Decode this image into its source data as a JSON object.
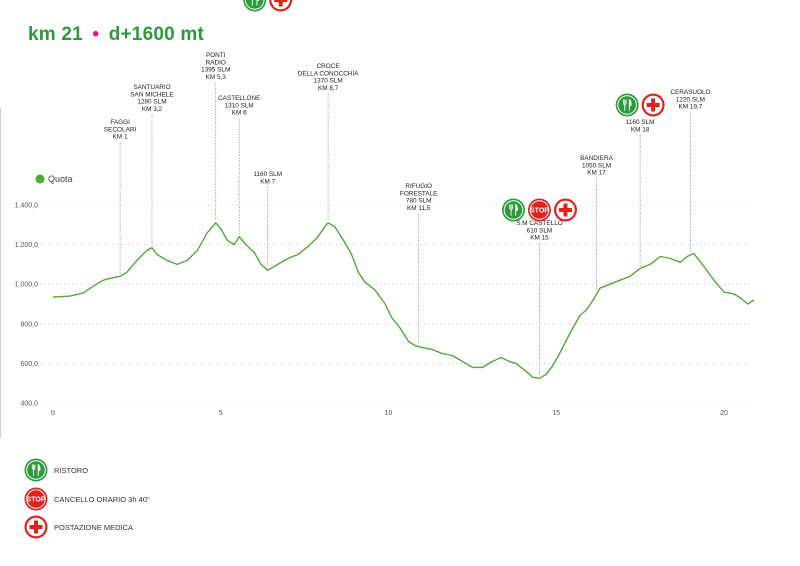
{
  "header": {
    "distance": "km 21",
    "separator": "•",
    "elevation": "d+1600 mt"
  },
  "colors": {
    "accent_green": "#2e9a3c",
    "line": "#52a83a",
    "separator": "#e5127d",
    "icon_red": "#e2211b"
  },
  "chart_data": {
    "type": "line",
    "title": "",
    "xlabel": "",
    "ylabel": "",
    "legend": [
      {
        "label": "Quota",
        "color": "#52a83a"
      }
    ],
    "xlim": [
      0,
      21
    ],
    "ylim": [
      400,
      1450
    ],
    "xticks": [
      "0",
      "5",
      "10",
      "15",
      "20"
    ],
    "yticks": [
      "400,0",
      "600,0",
      "800,0",
      "1.000,0",
      "1.200,0",
      "1.400,0"
    ],
    "grid": true,
    "series": [
      {
        "name": "Quota",
        "points": [
          [
            0,
            935
          ],
          [
            0.5,
            940
          ],
          [
            0.9,
            955
          ],
          [
            1.2,
            990
          ],
          [
            1.5,
            1020
          ],
          [
            1.7,
            1030
          ],
          [
            2.0,
            1040
          ],
          [
            2.2,
            1060
          ],
          [
            2.5,
            1120
          ],
          [
            2.8,
            1170
          ],
          [
            2.95,
            1185
          ],
          [
            3.1,
            1150
          ],
          [
            3.4,
            1120
          ],
          [
            3.7,
            1100
          ],
          [
            4.0,
            1120
          ],
          [
            4.3,
            1170
          ],
          [
            4.6,
            1260
          ],
          [
            4.85,
            1310
          ],
          [
            5.0,
            1280
          ],
          [
            5.2,
            1220
          ],
          [
            5.4,
            1200
          ],
          [
            5.55,
            1240
          ],
          [
            5.75,
            1200
          ],
          [
            6.0,
            1160
          ],
          [
            6.2,
            1100
          ],
          [
            6.4,
            1070
          ],
          [
            6.7,
            1100
          ],
          [
            7.0,
            1130
          ],
          [
            7.3,
            1150
          ],
          [
            7.6,
            1190
          ],
          [
            7.9,
            1240
          ],
          [
            8.1,
            1290
          ],
          [
            8.2,
            1310
          ],
          [
            8.4,
            1290
          ],
          [
            8.7,
            1210
          ],
          [
            8.9,
            1150
          ],
          [
            9.1,
            1060
          ],
          [
            9.3,
            1010
          ],
          [
            9.6,
            970
          ],
          [
            9.9,
            900
          ],
          [
            10.1,
            830
          ],
          [
            10.3,
            790
          ],
          [
            10.6,
            710
          ],
          [
            10.8,
            690
          ],
          [
            11.0,
            680
          ],
          [
            11.3,
            670
          ],
          [
            11.6,
            650
          ],
          [
            11.9,
            640
          ],
          [
            12.2,
            610
          ],
          [
            12.5,
            580
          ],
          [
            12.8,
            580
          ],
          [
            13.1,
            610
          ],
          [
            13.35,
            630
          ],
          [
            13.6,
            610
          ],
          [
            13.8,
            600
          ],
          [
            14.1,
            560
          ],
          [
            14.3,
            530
          ],
          [
            14.5,
            525
          ],
          [
            14.7,
            545
          ],
          [
            14.9,
            590
          ],
          [
            15.1,
            650
          ],
          [
            15.4,
            750
          ],
          [
            15.7,
            840
          ],
          [
            15.9,
            870
          ],
          [
            16.1,
            920
          ],
          [
            16.3,
            980
          ],
          [
            16.6,
            1000
          ],
          [
            16.9,
            1020
          ],
          [
            17.2,
            1040
          ],
          [
            17.5,
            1080
          ],
          [
            17.8,
            1100
          ],
          [
            18.1,
            1140
          ],
          [
            18.4,
            1130
          ],
          [
            18.7,
            1110
          ],
          [
            18.9,
            1140
          ],
          [
            19.1,
            1155
          ],
          [
            19.4,
            1090
          ],
          [
            19.7,
            1020
          ],
          [
            20.0,
            960
          ],
          [
            20.3,
            950
          ],
          [
            20.5,
            930
          ],
          [
            20.7,
            900
          ],
          [
            20.9,
            920
          ]
        ]
      }
    ],
    "annotations": [
      {
        "lines": [
          "FAGGI",
          "SECOLARI",
          "KM 1"
        ],
        "km": 2.0,
        "elev": 1040
      },
      {
        "lines": [
          "SANTUARIO",
          "SAN MICHELE",
          "1280 SLM",
          "KM 3,2"
        ],
        "km": 2.95,
        "elev": 1185
      },
      {
        "lines": [
          "PONTI",
          "RADIO",
          "1395 SLM",
          "KM 5,3"
        ],
        "km": 4.85,
        "elev": 1310
      },
      {
        "lines": [
          "CASTELLONE",
          "1310 SLM",
          "KM 6"
        ],
        "km": 5.55,
        "elev": 1240
      },
      {
        "lines": [
          "1160 SLM",
          "KM 7"
        ],
        "km": 6.4,
        "elev": 1070,
        "icons": [
          "ristoro",
          "medico"
        ]
      },
      {
        "lines": [
          "CROCE",
          "DELLA CONOCCHIA",
          "1370 SLM",
          "KM 8,7"
        ],
        "km": 8.2,
        "elev": 1310
      },
      {
        "lines": [
          "RIFUGIO",
          "FORESTALE",
          "780 SLM",
          "KM 11,5"
        ],
        "km": 10.9,
        "elev": 690
      },
      {
        "lines": [
          "S.M CASTELLO",
          "610 SLM",
          "KM 15"
        ],
        "km": 14.5,
        "elev": 525,
        "icons": [
          "ristoro",
          "stop",
          "medico"
        ]
      },
      {
        "lines": [
          "BANDIERA",
          "1050 SLM",
          "KM 17"
        ],
        "km": 16.2,
        "elev": 960
      },
      {
        "lines": [
          "1160 SLM",
          "KM 18"
        ],
        "km": 17.5,
        "elev": 1080,
        "icons": [
          "ristoro",
          "medico"
        ]
      },
      {
        "lines": [
          "CERASUOLO",
          "1220 SLM",
          "KM 19,7"
        ],
        "km": 19.0,
        "elev": 1150
      }
    ]
  },
  "legend": {
    "items": [
      {
        "icon": "ristoro",
        "label": "RISTORO"
      },
      {
        "icon": "stop",
        "label": "CANCELLO ORARIO 3h 40\"",
        "icon_text": "STOP"
      },
      {
        "icon": "medico",
        "label": "POSTAZIONE MEDICA"
      }
    ]
  }
}
